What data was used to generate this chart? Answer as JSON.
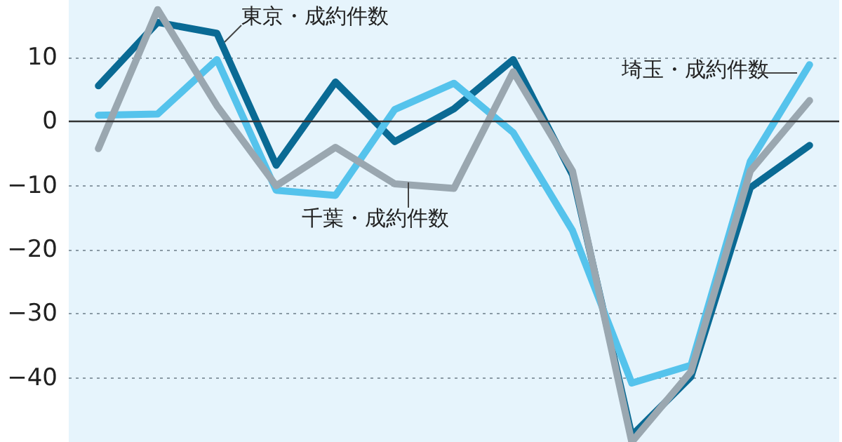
{
  "chart_data": {
    "type": "line",
    "categories": [
      null,
      null,
      null,
      null,
      null,
      null,
      null,
      null,
      null,
      null,
      null,
      null,
      null
    ],
    "series": [
      {
        "name": "東京・成約件数",
        "color": "#0a6a94",
        "values": [
          5.6,
          15.5,
          13.8,
          -6.8,
          6.2,
          -3.1,
          2,
          9.7,
          -8.3,
          -49,
          -39.8,
          -10.3,
          -3.7
        ]
      },
      {
        "name": "埼玉・成約件数",
        "color": "#55c3ec",
        "values": [
          1,
          1.2,
          9.7,
          -10.7,
          -11.5,
          1.9,
          6,
          -1.7,
          -17,
          -40.8,
          -38,
          -6.2,
          8.9
        ]
      },
      {
        "name": "千葉・成約件数",
        "color": "#9aa7b0",
        "values": [
          -4.2,
          17.5,
          2.5,
          -10,
          -4,
          -9.7,
          -10.4,
          7.8,
          -7.7,
          -50,
          -39,
          -7.7,
          3.3
        ]
      }
    ],
    "ylim": [
      -50,
      19
    ],
    "yticks": [
      {
        "value": -40,
        "label": "−40"
      },
      {
        "value": -30,
        "label": "−30"
      },
      {
        "value": -20,
        "label": "−20"
      },
      {
        "value": -10,
        "label": "−10"
      },
      0,
      10
    ],
    "grid": "y",
    "legend": false,
    "marker": "none",
    "line_style": "solid",
    "tick_labels": "y"
  }
}
